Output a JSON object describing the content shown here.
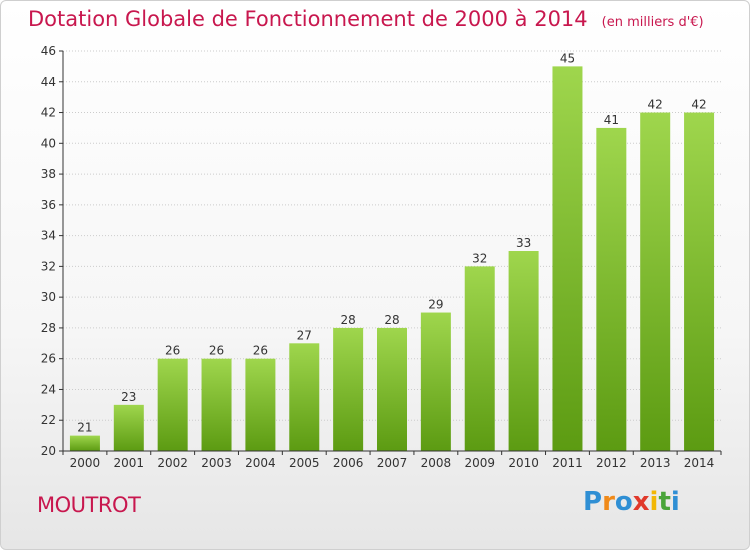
{
  "title": "Dotation Globale de Fonctionnement de 2000 à 2014",
  "subtitle": "(en milliers d'€)",
  "town": "MOUTROT",
  "logo": {
    "p": "P",
    "r": "r",
    "o": "o",
    "x": "x",
    "i1": "i",
    "t": "t",
    "i2": "i"
  },
  "colors": {
    "title": "#c8174e",
    "bar_top": "#9fd64d",
    "bar_bottom": "#5c9b12",
    "axis": "#333333",
    "grid": "#cccccc"
  },
  "chart_data": {
    "type": "bar",
    "categories": [
      "2000",
      "2001",
      "2002",
      "2003",
      "2004",
      "2005",
      "2006",
      "2007",
      "2008",
      "2009",
      "2010",
      "2011",
      "2012",
      "2013",
      "2014"
    ],
    "values": [
      21,
      23,
      26,
      26,
      26,
      27,
      28,
      28,
      29,
      32,
      33,
      45,
      41,
      42,
      42
    ],
    "ylim": [
      20,
      46
    ],
    "yticks": [
      20,
      22,
      24,
      26,
      28,
      30,
      32,
      34,
      36,
      38,
      40,
      42,
      44,
      46
    ],
    "grid": "horizontal dotted",
    "data_labels": true
  }
}
